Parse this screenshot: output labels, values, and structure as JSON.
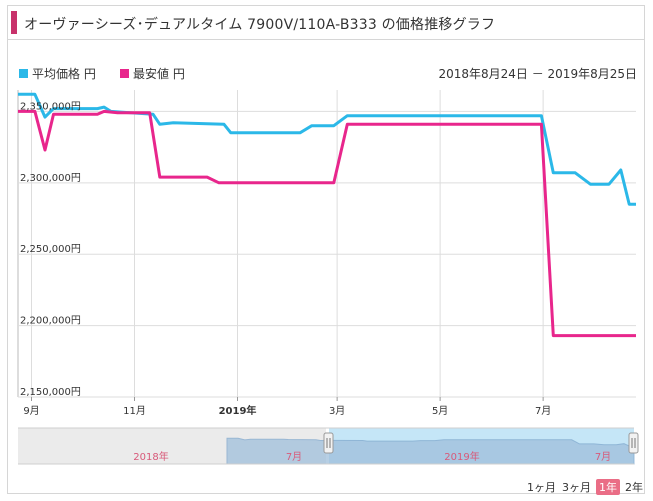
{
  "page_title": "オーヴァーシーズ･デュアルタイム 7900V/110A-B333 の価格推移グラフ",
  "date_range": "2018年8月24日 － 2019年8月25日",
  "range_buttons": [
    "1ヶ月",
    "3ヶ月",
    "1年",
    "2年"
  ],
  "active_range": "1年",
  "navigator_labels": [
    "2018年",
    "7月",
    "2019年",
    "7月"
  ],
  "colors": {
    "average": "#2bb8e8",
    "lowest": "#e8268c",
    "accent": "#c8326b",
    "navigator_selected": "#c5e6f7",
    "navigator_unselected": "#ebebeb"
  },
  "chart_data": {
    "type": "line",
    "x_type": "date",
    "ylim": [
      2150000,
      2365000
    ],
    "grid": true,
    "legend_position": "top-left",
    "ytick_labels": [
      "2,350,000円",
      "2,300,000円",
      "2,250,000円",
      "2,200,000円",
      "2,150,000円"
    ],
    "ytick_values": [
      2350000,
      2300000,
      2250000,
      2200000,
      2150000
    ],
    "xtick_labels": [
      "9月",
      "11月",
      "2019年",
      "3月",
      "5月",
      "7月"
    ],
    "xtick_dates": [
      "2018-09-01",
      "2018-11-01",
      "2019-01-01",
      "2019-03-01",
      "2019-05-01",
      "2019-07-01"
    ],
    "series": [
      {
        "name": "平均価格 円",
        "points": [
          [
            "2018-08-24",
            2362000
          ],
          [
            "2018-09-03",
            2362000
          ],
          [
            "2018-09-09",
            2346000
          ],
          [
            "2018-09-14",
            2352000
          ],
          [
            "2018-10-10",
            2352000
          ],
          [
            "2018-10-14",
            2353000
          ],
          [
            "2018-10-18",
            2350000
          ],
          [
            "2018-11-12",
            2348000
          ],
          [
            "2018-11-16",
            2341000
          ],
          [
            "2018-11-24",
            2342000
          ],
          [
            "2018-12-24",
            2341000
          ],
          [
            "2018-12-28",
            2335000
          ],
          [
            "2019-02-07",
            2335000
          ],
          [
            "2019-02-14",
            2340000
          ],
          [
            "2019-02-27",
            2340000
          ],
          [
            "2019-03-07",
            2347000
          ],
          [
            "2019-06-30",
            2347000
          ],
          [
            "2019-07-07",
            2307000
          ],
          [
            "2019-07-20",
            2307000
          ],
          [
            "2019-07-29",
            2299000
          ],
          [
            "2019-08-09",
            2299000
          ],
          [
            "2019-08-16",
            2309000
          ],
          [
            "2019-08-21",
            2285000
          ],
          [
            "2019-08-25",
            2285000
          ]
        ]
      },
      {
        "name": "最安値 円",
        "points": [
          [
            "2018-08-24",
            2350000
          ],
          [
            "2018-09-03",
            2350000
          ],
          [
            "2018-09-09",
            2323000
          ],
          [
            "2018-09-14",
            2348000
          ],
          [
            "2018-10-10",
            2348000
          ],
          [
            "2018-10-14",
            2350000
          ],
          [
            "2018-10-22",
            2349000
          ],
          [
            "2018-11-10",
            2349000
          ],
          [
            "2018-11-16",
            2304000
          ],
          [
            "2018-12-14",
            2304000
          ],
          [
            "2018-12-21",
            2300000
          ],
          [
            "2019-02-27",
            2300000
          ],
          [
            "2019-03-07",
            2341000
          ],
          [
            "2019-06-30",
            2341000
          ],
          [
            "2019-07-07",
            2193000
          ],
          [
            "2019-08-25",
            2193000
          ]
        ]
      }
    ]
  }
}
